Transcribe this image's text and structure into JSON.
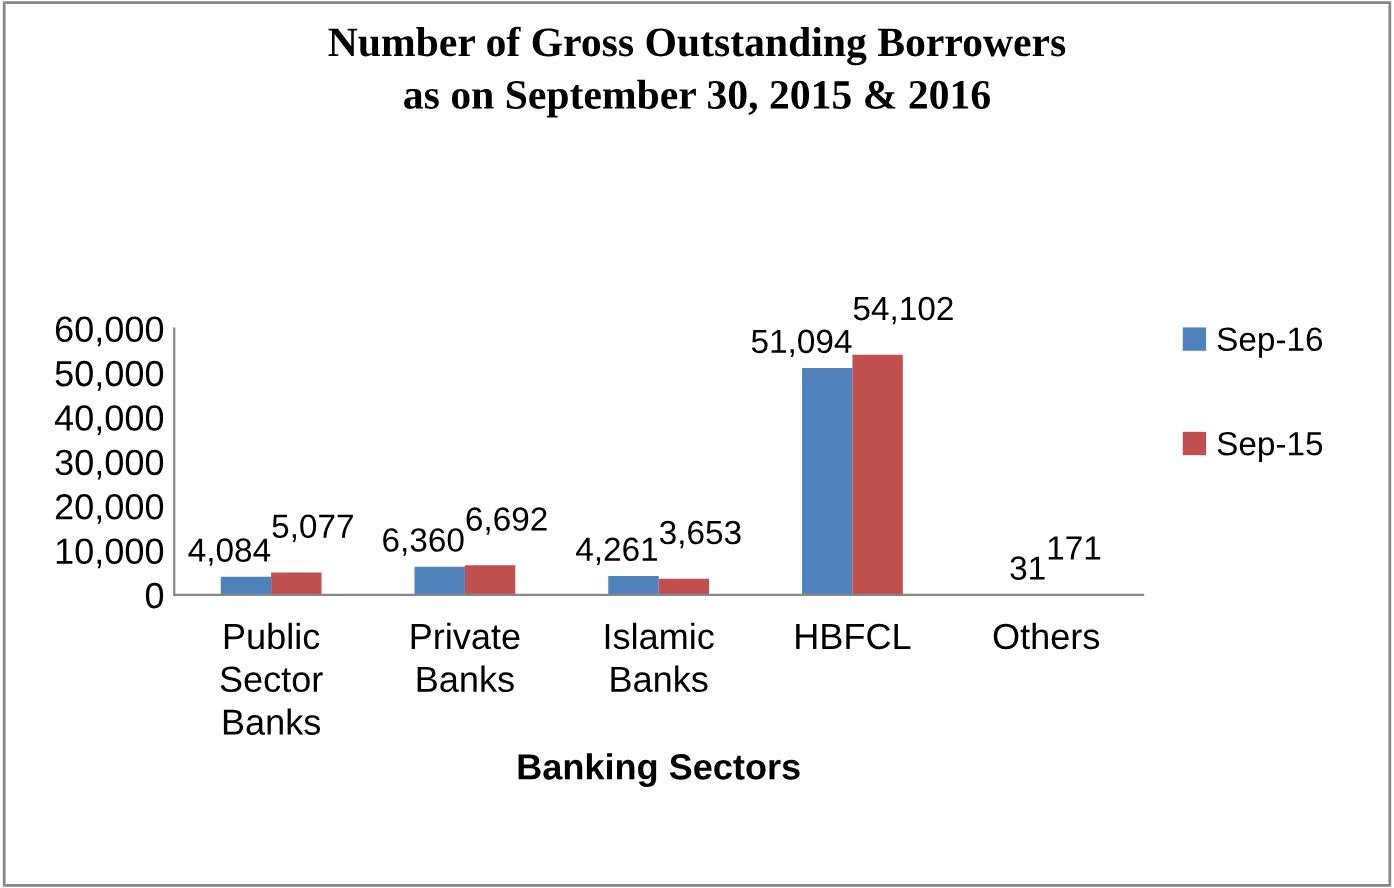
{
  "chart_data": {
    "type": "bar",
    "title": "Number of Gross Outstanding Borrowers\nas on September 30, 2015 & 2016",
    "xlabel": "Banking Sectors",
    "categories": [
      "Public\nSector\nBanks",
      "Private\nBanks",
      "Islamic\nBanks",
      "HBFCL",
      "Others"
    ],
    "series": [
      {
        "name": "Sep-16",
        "color": "#4f81bd",
        "values": [
          4084,
          6360,
          4261,
          51094,
          31
        ],
        "value_labels": [
          "4,084",
          "6,360",
          "4,261",
          "51,094",
          "31"
        ]
      },
      {
        "name": "Sep-15",
        "color": "#c0504d",
        "values": [
          5077,
          6692,
          3653,
          54102,
          171
        ],
        "value_labels": [
          "5,077",
          "6,692",
          "3,653",
          "54,102",
          "171"
        ]
      }
    ],
    "ylim": [
      0,
      60000
    ],
    "yticks": [
      {
        "value": 0,
        "label": "0"
      },
      {
        "value": 10000,
        "label": "10,000"
      },
      {
        "value": 20000,
        "label": "20,000"
      },
      {
        "value": 30000,
        "label": "30,000"
      },
      {
        "value": 40000,
        "label": "40,000"
      },
      {
        "value": 50000,
        "label": "50,000"
      },
      {
        "value": 60000,
        "label": "60,000"
      }
    ],
    "grid": false,
    "legend": "right"
  }
}
